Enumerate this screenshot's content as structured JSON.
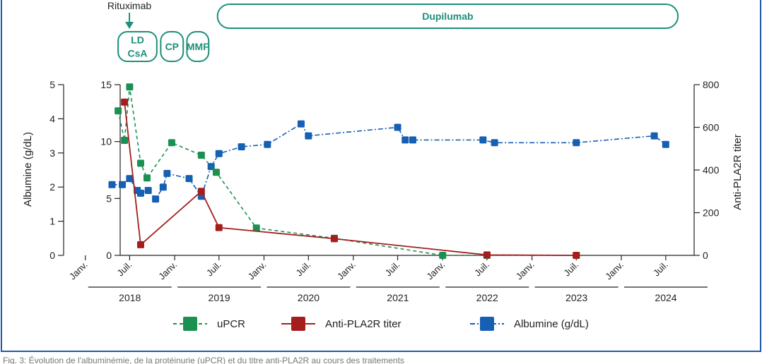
{
  "colors": {
    "upcr": "#1a9150",
    "pla2r": "#a51e1e",
    "albumine": "#1560b3",
    "treatment": "#1e8f7a",
    "frame": "#1f5aa8"
  },
  "treatments": {
    "annotation": "Rituximab",
    "boxes": [
      {
        "label": "LD\nCsA",
        "start": "2018-05-15",
        "end": "2018-10-20"
      },
      {
        "label": "CP",
        "start": "2018-11-05",
        "end": "2019-02-05"
      },
      {
        "label": "MMF",
        "start": "2019-02-20",
        "end": "2019-05-20"
      },
      {
        "label": "Dupilumab",
        "start": "2019-06-25",
        "end": "2024-08-20"
      }
    ]
  },
  "chart_data": {
    "type": "line",
    "x_axis": {
      "tick_labels": [
        "Janv.",
        "Juil.",
        "Janv.",
        "Juil.",
        "Janv.",
        "Juil.",
        "Janv.",
        "Juil.",
        "Janv.",
        "Juil.",
        "Janv.",
        "Juil.",
        "Janv.",
        "Juil."
      ],
      "tick_dates": [
        "2018-01-01",
        "2018-07-01",
        "2019-01-01",
        "2019-07-01",
        "2020-01-01",
        "2020-07-01",
        "2021-01-01",
        "2021-07-01",
        "2022-01-01",
        "2022-07-01",
        "2023-01-01",
        "2023-07-01",
        "2024-01-01",
        "2024-07-01"
      ],
      "years": [
        "2018",
        "2019",
        "2020",
        "2021",
        "2022",
        "2023",
        "2024"
      ],
      "range": [
        "2017-12-01",
        "2024-12-31"
      ]
    },
    "y_axes": {
      "albumine": {
        "label": "Albumine (g/dL)",
        "range": [
          0,
          5
        ],
        "ticks": [
          "0",
          "1",
          "2",
          "3",
          "4",
          "5"
        ]
      },
      "upcr": {
        "label": "",
        "range": [
          0,
          15
        ],
        "ticks": [
          "0",
          "5",
          "10",
          "15"
        ]
      },
      "pla2r": {
        "label": "Anti-PLA2R titer",
        "range": [
          0,
          800
        ],
        "ticks": [
          "0",
          "200",
          "400",
          "600",
          "800"
        ]
      }
    },
    "series": [
      {
        "name": "uPCR",
        "axis": "upcr",
        "style": "dashed",
        "points": [
          [
            "2018-05-15",
            12.7
          ],
          [
            "2018-06-10",
            10.1
          ],
          [
            "2018-07-01",
            14.8
          ],
          [
            "2018-08-15",
            8.1
          ],
          [
            "2018-09-10",
            6.8
          ],
          [
            "2018-12-20",
            9.9
          ],
          [
            "2019-04-20",
            8.8
          ],
          [
            "2019-06-20",
            7.3
          ],
          [
            "2019-12-01",
            2.4
          ],
          [
            "2020-10-15",
            1.5
          ],
          [
            "2022-01-01",
            0.0
          ],
          [
            "2022-07-01",
            0.0
          ],
          [
            "2023-07-01",
            0.0
          ]
        ]
      },
      {
        "name": "Anti-PLA2R titer",
        "axis": "pla2r",
        "style": "solid",
        "points": [
          [
            "2018-06-10",
            718
          ],
          [
            "2018-08-15",
            50
          ],
          [
            "2019-04-20",
            300
          ],
          [
            "2019-07-01",
            130
          ],
          [
            "2020-10-15",
            78
          ],
          [
            "2022-07-01",
            2
          ],
          [
            "2023-07-01",
            0
          ]
        ]
      },
      {
        "name": "Albumine (g/dL)",
        "axis": "albumine",
        "style": "dashdot",
        "points": [
          [
            "2018-04-20",
            2.07
          ],
          [
            "2018-06-01",
            2.07
          ],
          [
            "2018-07-01",
            2.25
          ],
          [
            "2018-08-01",
            1.9
          ],
          [
            "2018-08-15",
            1.82
          ],
          [
            "2018-09-15",
            1.9
          ],
          [
            "2018-10-15",
            1.65
          ],
          [
            "2018-11-15",
            2.0
          ],
          [
            "2018-12-01",
            2.4
          ],
          [
            "2019-03-01",
            2.25
          ],
          [
            "2019-04-20",
            1.73
          ],
          [
            "2019-05-30",
            2.6
          ],
          [
            "2019-07-01",
            2.98
          ],
          [
            "2019-10-01",
            3.18
          ],
          [
            "2020-01-15",
            3.25
          ],
          [
            "2020-06-01",
            3.85
          ],
          [
            "2020-07-01",
            3.5
          ],
          [
            "2021-07-01",
            3.75
          ],
          [
            "2021-08-01",
            3.38
          ],
          [
            "2021-09-01",
            3.38
          ],
          [
            "2022-06-15",
            3.38
          ],
          [
            "2022-08-01",
            3.3
          ],
          [
            "2023-07-01",
            3.3
          ],
          [
            "2024-05-15",
            3.5
          ],
          [
            "2024-07-01",
            3.25
          ]
        ]
      }
    ],
    "legend": {
      "placement": "bottom",
      "entries": [
        "uPCR",
        "Anti-PLA2R titer",
        "Albumine (g/dL)"
      ]
    }
  },
  "caption": "Fig. 3: Évolution de l'albuminémie, de la protéinurie (uPCR) et du titre anti-PLA2R au cours des traitements"
}
